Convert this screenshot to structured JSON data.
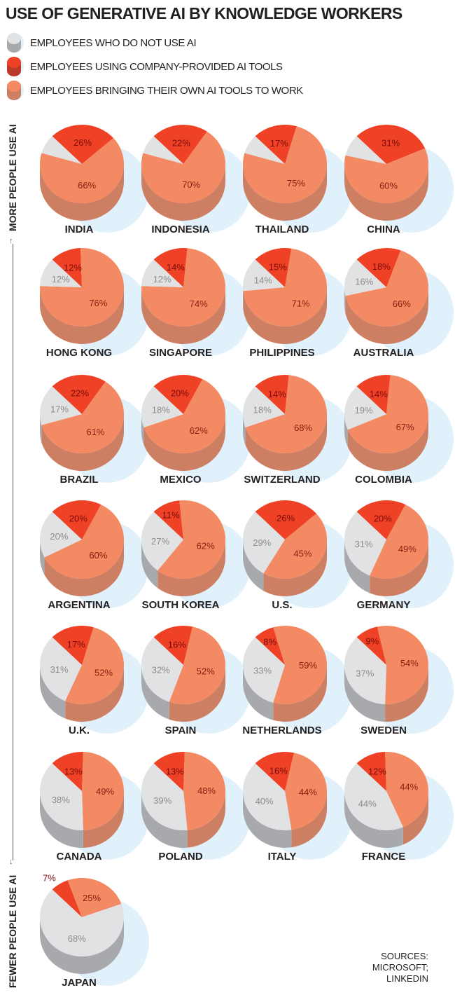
{
  "title": "USE OF GENERATIVE AI BY KNOWLEDGE WORKERS",
  "legend": [
    {
      "key": "none",
      "label": "EMPLOYEES WHO DO NOT USE AI"
    },
    {
      "key": "company",
      "label": "EMPLOYEES USING COMPANY-PROVIDED AI TOOLS"
    },
    {
      "key": "own",
      "label": "EMPLOYEES BRINGING THEIR OWN AI TOOLS TO WORK"
    }
  ],
  "axis": {
    "top": "MORE PEOPLE USE AI",
    "bottom": "FEWER PEOPLE USE AI"
  },
  "sources": [
    "SOURCES:",
    "MICROSOFT;",
    "LINKEDIN"
  ],
  "colors": {
    "none": {
      "top": "#e1e2e4",
      "side": "#a8a9ac",
      "text": "#8c8c8c"
    },
    "company": {
      "top": "#ee4125",
      "side": "#b83a2a",
      "text": "#7a0c0c"
    },
    "own": {
      "top": "#f48a63",
      "side": "#cd7f64",
      "text": "#8e1a10"
    },
    "shadow": "#e0f1fb"
  },
  "chart_data": {
    "type": "pie",
    "title": "USE OF GENERATIVE AI BY KNOWLEDGE WORKERS",
    "units": "percent",
    "series": [
      "EMPLOYEES WHO DO NOT USE AI",
      "EMPLOYEES USING COMPANY-PROVIDED AI TOOLS",
      "EMPLOYEES BRINGING THEIR OWN AI TOOLS TO WORK"
    ],
    "countries": [
      {
        "name": "INDIA",
        "none": 8,
        "company": 26,
        "own": 66,
        "none_labeled": false
      },
      {
        "name": "INDONESIA",
        "none": 8,
        "company": 22,
        "own": 70,
        "none_labeled": false
      },
      {
        "name": "THAILAND",
        "none": 8,
        "company": 17,
        "own": 75,
        "none_labeled": false
      },
      {
        "name": "CHINA",
        "none": 9,
        "company": 31,
        "own": 60,
        "none_labeled": false
      },
      {
        "name": "HONG KONG",
        "none": 12,
        "company": 12,
        "own": 76,
        "none_labeled": true
      },
      {
        "name": "SINGAPORE",
        "none": 12,
        "company": 14,
        "own": 74,
        "none_labeled": true
      },
      {
        "name": "PHILIPPINES",
        "none": 14,
        "company": 15,
        "own": 71,
        "none_labeled": true
      },
      {
        "name": "AUSTRALIA",
        "none": 16,
        "company": 18,
        "own": 66,
        "none_labeled": true
      },
      {
        "name": "BRAZIL",
        "none": 17,
        "company": 22,
        "own": 61,
        "none_labeled": true
      },
      {
        "name": "MEXICO",
        "none": 18,
        "company": 20,
        "own": 62,
        "none_labeled": true
      },
      {
        "name": "SWITZERLAND",
        "none": 18,
        "company": 14,
        "own": 68,
        "none_labeled": true
      },
      {
        "name": "COLOMBIA",
        "none": 19,
        "company": 14,
        "own": 67,
        "none_labeled": true
      },
      {
        "name": "ARGENTINA",
        "none": 20,
        "company": 20,
        "own": 60,
        "none_labeled": true
      },
      {
        "name": "SOUTH KOREA",
        "none": 27,
        "company": 11,
        "own": 62,
        "none_labeled": true
      },
      {
        "name": "U.S.",
        "none": 29,
        "company": 26,
        "own": 45,
        "none_labeled": true
      },
      {
        "name": "GERMANY",
        "none": 31,
        "company": 20,
        "own": 49,
        "none_labeled": true
      },
      {
        "name": "U.K.",
        "none": 31,
        "company": 17,
        "own": 52,
        "none_labeled": true
      },
      {
        "name": "SPAIN",
        "none": 32,
        "company": 16,
        "own": 52,
        "none_labeled": true
      },
      {
        "name": "NETHERLANDS",
        "none": 33,
        "company": 8,
        "own": 59,
        "none_labeled": true
      },
      {
        "name": "SWEDEN",
        "none": 37,
        "company": 9,
        "own": 54,
        "none_labeled": true
      },
      {
        "name": "CANADA",
        "none": 38,
        "company": 13,
        "own": 49,
        "none_labeled": true
      },
      {
        "name": "POLAND",
        "none": 39,
        "company": 13,
        "own": 48,
        "none_labeled": true
      },
      {
        "name": "ITALY",
        "none": 40,
        "company": 16,
        "own": 44,
        "none_labeled": true
      },
      {
        "name": "FRANCE",
        "none": 44,
        "company": 12,
        "own": 44,
        "none_labeled": true
      },
      {
        "name": "JAPAN",
        "none": 68,
        "company": 7,
        "own": 25,
        "none_labeled": true
      }
    ]
  }
}
